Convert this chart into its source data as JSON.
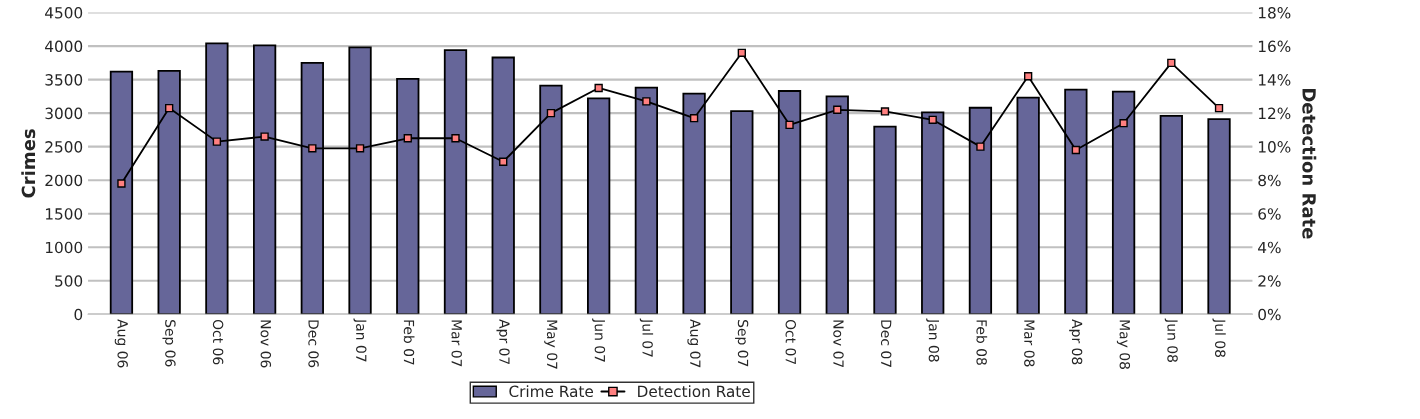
{
  "chart_data": {
    "type": "bar",
    "ylabel": "Crimes",
    "y2label": "Detection Rate",
    "categories": [
      "Aug 06",
      "Sep 06",
      "Oct 06",
      "Nov 06",
      "Dec 06",
      "Jan 07",
      "Feb 07",
      "Mar 07",
      "Apr 07",
      "May 07",
      "Jun 07",
      "Jul 07",
      "Aug 07",
      "Sep 07",
      "Oct 07",
      "Nov 07",
      "Dec 07",
      "Jan 08",
      "Feb 08",
      "Mar 08",
      "Apr 08",
      "May 08",
      "Jun 08",
      "Jul 08"
    ],
    "series": [
      {
        "name": "Crime Rate",
        "color": "#666699",
        "values": [
          3620,
          3630,
          4040,
          4010,
          3750,
          3980,
          3510,
          3940,
          3830,
          3410,
          3220,
          3380,
          3290,
          3030,
          3330,
          3250,
          2800,
          3010,
          3080,
          3230,
          3350,
          3320,
          2960,
          2910
        ]
      },
      {
        "name": "Detection Rate",
        "type": "line",
        "axis": "y2",
        "color": "#000000",
        "marker": "square",
        "values": [
          7.8,
          12.3,
          10.3,
          10.6,
          9.9,
          9.9,
          10.5,
          10.5,
          9.1,
          12.0,
          13.5,
          12.7,
          11.7,
          15.6,
          11.3,
          12.2,
          12.1,
          11.6,
          10.0,
          14.2,
          9.8,
          11.4,
          15.0,
          12.3
        ]
      }
    ],
    "ylim": [
      0,
      4500
    ],
    "yticks": [
      0,
      500,
      1000,
      1500,
      2000,
      2500,
      3000,
      3500,
      4000,
      4500
    ],
    "y2lim": [
      0,
      18
    ],
    "y2ticks": [
      {
        "value": 0,
        "label": "0%"
      },
      {
        "value": 2,
        "label": "2%"
      },
      {
        "value": 4,
        "label": "4%"
      },
      {
        "value": 6,
        "label": "6%"
      },
      {
        "value": 8,
        "label": "8%"
      },
      {
        "value": 10,
        "label": "10%"
      },
      {
        "value": 12,
        "label": "12%"
      },
      {
        "value": 14,
        "label": "14%"
      },
      {
        "value": 16,
        "label": "16%"
      },
      {
        "value": 18,
        "label": "18%"
      }
    ],
    "grid": "y",
    "legend": "bottom"
  }
}
